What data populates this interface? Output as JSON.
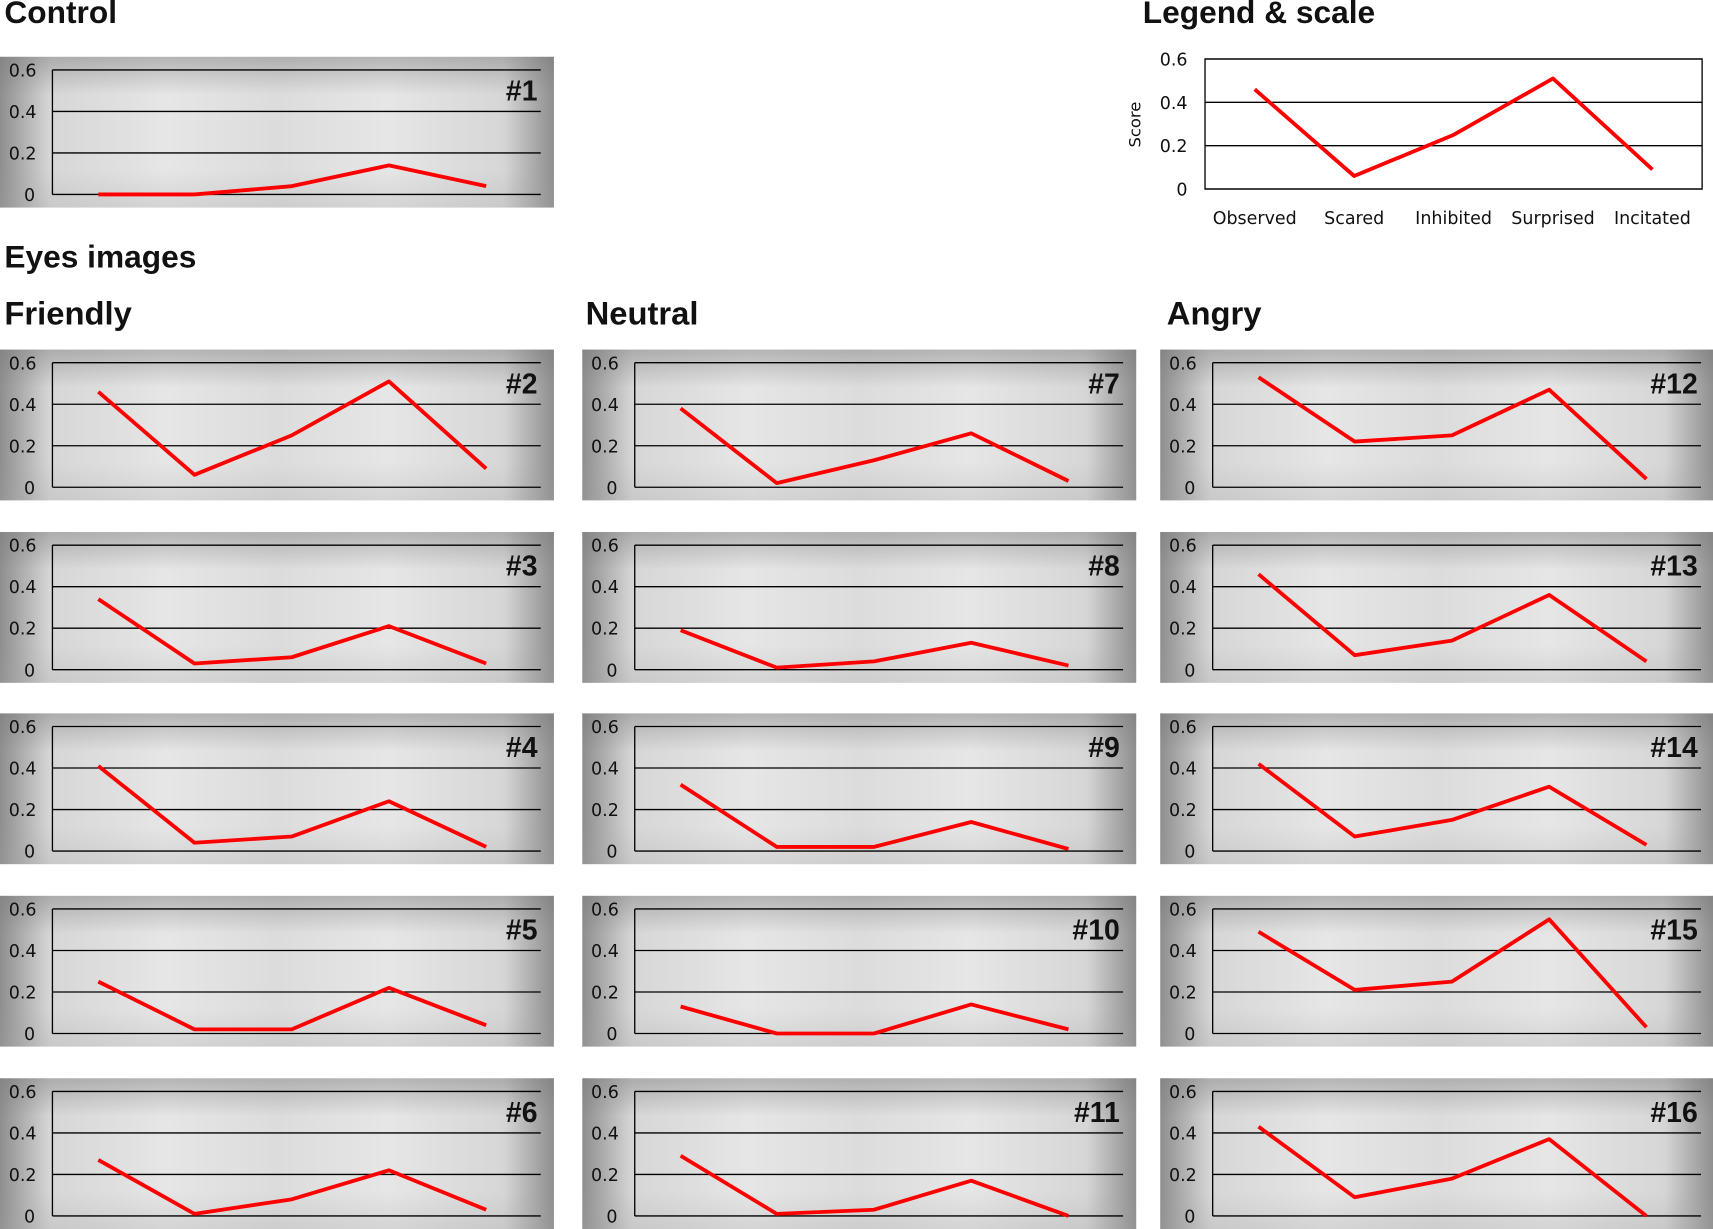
{
  "headings": {
    "control": "Control",
    "legend": "Legend & scale",
    "eyes": "Eyes images",
    "groups": [
      "Friendly",
      "Neutral",
      "Angry"
    ]
  },
  "colors": {
    "line": "#ff0000",
    "grid": "#000000",
    "photo_background": "#dcdcdc"
  },
  "chart_data": {
    "type": "line",
    "categories": [
      "Observed",
      "Scared",
      "Inhibited",
      "Surprised",
      "Incitated"
    ],
    "ylim": [
      0,
      0.6
    ],
    "yticks": [
      "0",
      "0.2",
      "0.4",
      "0.6"
    ],
    "grid": true,
    "legend": {
      "title": "Legend & scale",
      "ylabel": "Score",
      "values": [
        0.46,
        0.06,
        0.25,
        0.51,
        0.09
      ]
    },
    "panels": [
      {
        "label": "#1",
        "group": "Control",
        "values": [
          0.0,
          0.0,
          0.04,
          0.14,
          0.04
        ]
      },
      {
        "label": "#2",
        "group": "Friendly",
        "values": [
          0.46,
          0.06,
          0.25,
          0.51,
          0.09
        ]
      },
      {
        "label": "#3",
        "group": "Friendly",
        "values": [
          0.34,
          0.03,
          0.06,
          0.21,
          0.03
        ]
      },
      {
        "label": "#4",
        "group": "Friendly",
        "values": [
          0.41,
          0.04,
          0.07,
          0.24,
          0.02
        ]
      },
      {
        "label": "#5",
        "group": "Friendly",
        "values": [
          0.25,
          0.02,
          0.02,
          0.22,
          0.04
        ]
      },
      {
        "label": "#6",
        "group": "Friendly",
        "values": [
          0.27,
          0.01,
          0.08,
          0.22,
          0.03
        ]
      },
      {
        "label": "#7",
        "group": "Neutral",
        "values": [
          0.38,
          0.02,
          0.13,
          0.26,
          0.03
        ]
      },
      {
        "label": "#8",
        "group": "Neutral",
        "values": [
          0.19,
          0.01,
          0.04,
          0.13,
          0.02
        ]
      },
      {
        "label": "#9",
        "group": "Neutral",
        "values": [
          0.32,
          0.02,
          0.02,
          0.14,
          0.01
        ]
      },
      {
        "label": "#10",
        "group": "Neutral",
        "values": [
          0.13,
          0.0,
          0.0,
          0.14,
          0.02
        ]
      },
      {
        "label": "#11",
        "group": "Neutral",
        "values": [
          0.29,
          0.01,
          0.03,
          0.17,
          0.0
        ]
      },
      {
        "label": "#12",
        "group": "Angry",
        "values": [
          0.53,
          0.22,
          0.25,
          0.47,
          0.04
        ]
      },
      {
        "label": "#13",
        "group": "Angry",
        "values": [
          0.46,
          0.07,
          0.14,
          0.36,
          0.04
        ]
      },
      {
        "label": "#14",
        "group": "Angry",
        "values": [
          0.42,
          0.07,
          0.15,
          0.31,
          0.03
        ]
      },
      {
        "label": "#15",
        "group": "Angry",
        "values": [
          0.49,
          0.21,
          0.25,
          0.55,
          0.03
        ]
      },
      {
        "label": "#16",
        "group": "Angry",
        "values": [
          0.43,
          0.09,
          0.18,
          0.37,
          0.0
        ]
      }
    ]
  }
}
